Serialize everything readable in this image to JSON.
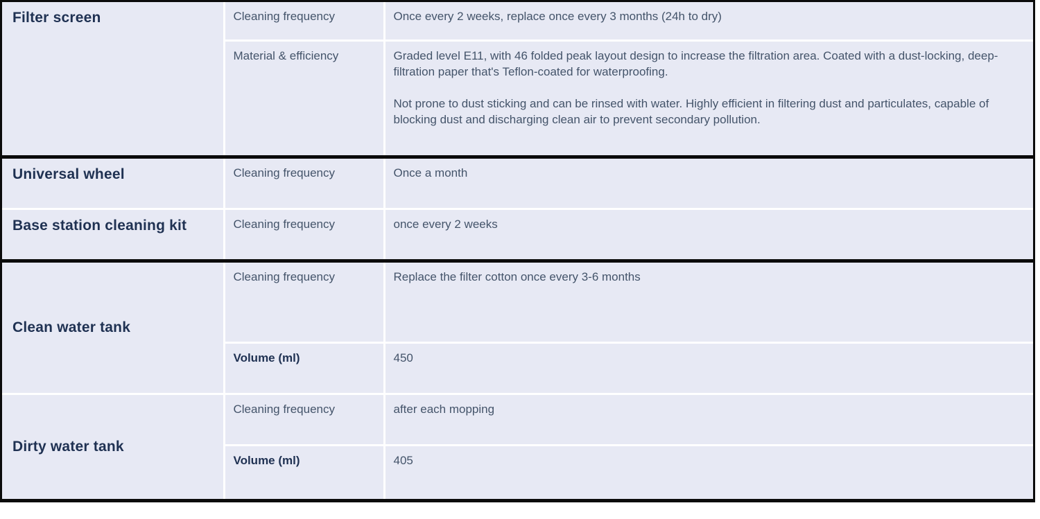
{
  "document": {
    "colors": {
      "table_background": "#e7e9f4",
      "cell_divider": "#ffffff",
      "section_border": "#0b0b0b",
      "heading_text": "#1f3152",
      "body_text": "#44546a"
    },
    "sections": [
      {
        "name": "Filter screen",
        "rows": [
          {
            "label": "Cleaning frequency",
            "value": "Once every 2 weeks, replace once every 3 months (24h to dry)"
          },
          {
            "label": "Material & efficiency",
            "value": "Graded level E11, with 46 folded peak layout design to increase the filtration area. Coated with a dust-locking, deep-filtration paper that's Teflon-coated for waterproofing.",
            "value2": "Not prone to dust sticking and can be rinsed with water. Highly efficient in filtering dust and particulates, capable of blocking dust and discharging clean air to prevent secondary pollution."
          }
        ]
      },
      {
        "name": "Universal wheel",
        "rows": [
          {
            "label": "Cleaning frequency",
            "value": "Once a month"
          }
        ]
      },
      {
        "name": "Base station cleaning kit",
        "rows": [
          {
            "label": "Cleaning frequency",
            "value": "once every 2 weeks"
          }
        ]
      },
      {
        "name": "Clean water tank",
        "rows": [
          {
            "label": "Cleaning frequency",
            "value": "Replace the filter cotton once every 3-6 months"
          },
          {
            "label": "Volume (ml)",
            "value": "450"
          }
        ]
      },
      {
        "name": "Dirty water tank",
        "rows": [
          {
            "label": "Cleaning frequency",
            "value": "after each mopping"
          },
          {
            "label": "Volume (ml)",
            "value": "405"
          }
        ]
      }
    ]
  }
}
